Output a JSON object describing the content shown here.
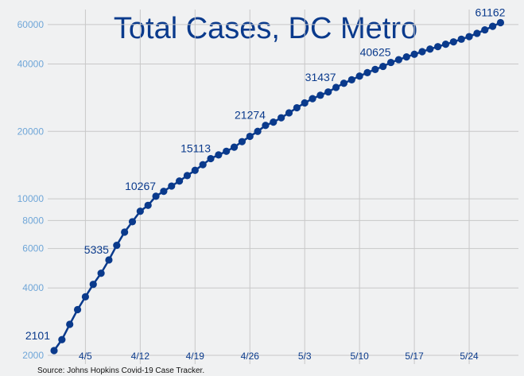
{
  "chart_data": {
    "type": "line",
    "title": "Total Cases, DC Metro",
    "source": "Source: Johns Hopkins Covid-19 Case Tracker.",
    "y_scale": "log",
    "ylim": [
      2000,
      70000
    ],
    "y_ticks": [
      2000,
      4000,
      6000,
      8000,
      10000,
      20000,
      40000,
      60000
    ],
    "y_tick_labels": [
      "2000",
      "4000",
      "6000",
      "8000",
      "10000",
      "20000",
      "40000",
      "60000"
    ],
    "x_ticks": [
      4,
      11,
      18,
      25,
      32,
      39,
      46,
      53
    ],
    "x_tick_labels": [
      "4/5",
      "4/12",
      "4/19",
      "4/26",
      "5/3",
      "5/10",
      "5/17",
      "5/24"
    ],
    "grid": true,
    "colors": {
      "series": "#0a3a8c",
      "ytick": "#6fa6d8",
      "grid": "#c8c8c8",
      "background": "#f0f1f2"
    },
    "series": [
      {
        "x": [
          0,
          1,
          2,
          3,
          4,
          5,
          6,
          7,
          8,
          9,
          10,
          11,
          12,
          13,
          14,
          15,
          16,
          17,
          18,
          19,
          20,
          21,
          22,
          23,
          24,
          25,
          26,
          27,
          28,
          29,
          30,
          31,
          32,
          33,
          34,
          35,
          36,
          37,
          38,
          39,
          40,
          41,
          42,
          43,
          44,
          45,
          46,
          47,
          48,
          49,
          50,
          51,
          52,
          53,
          54,
          55,
          56,
          57
        ],
        "y": [
          2101,
          2350,
          2750,
          3200,
          3650,
          4150,
          4650,
          5335,
          6200,
          7100,
          7900,
          8800,
          9350,
          10267,
          10800,
          11400,
          12000,
          12700,
          13400,
          14200,
          15113,
          15700,
          16300,
          17000,
          18000,
          19000,
          20000,
          21274,
          22000,
          23000,
          24200,
          25500,
          26800,
          28000,
          29000,
          30000,
          31437,
          32800,
          34000,
          35300,
          36600,
          37800,
          39000,
          40625,
          41800,
          43000,
          44200,
          45400,
          46600,
          47800,
          49000,
          50200,
          51600,
          53000,
          54800,
          56800,
          58900,
          61162
        ]
      }
    ],
    "data_labels": [
      {
        "x": 0,
        "text": "2101"
      },
      {
        "x": 7,
        "text": "5335"
      },
      {
        "x": 13,
        "text": "10267"
      },
      {
        "x": 20,
        "text": "15113"
      },
      {
        "x": 27,
        "text": "21274"
      },
      {
        "x": 36,
        "text": "31437"
      },
      {
        "x": 43,
        "text": "40625"
      },
      {
        "x": 57,
        "text": "61162"
      }
    ]
  }
}
